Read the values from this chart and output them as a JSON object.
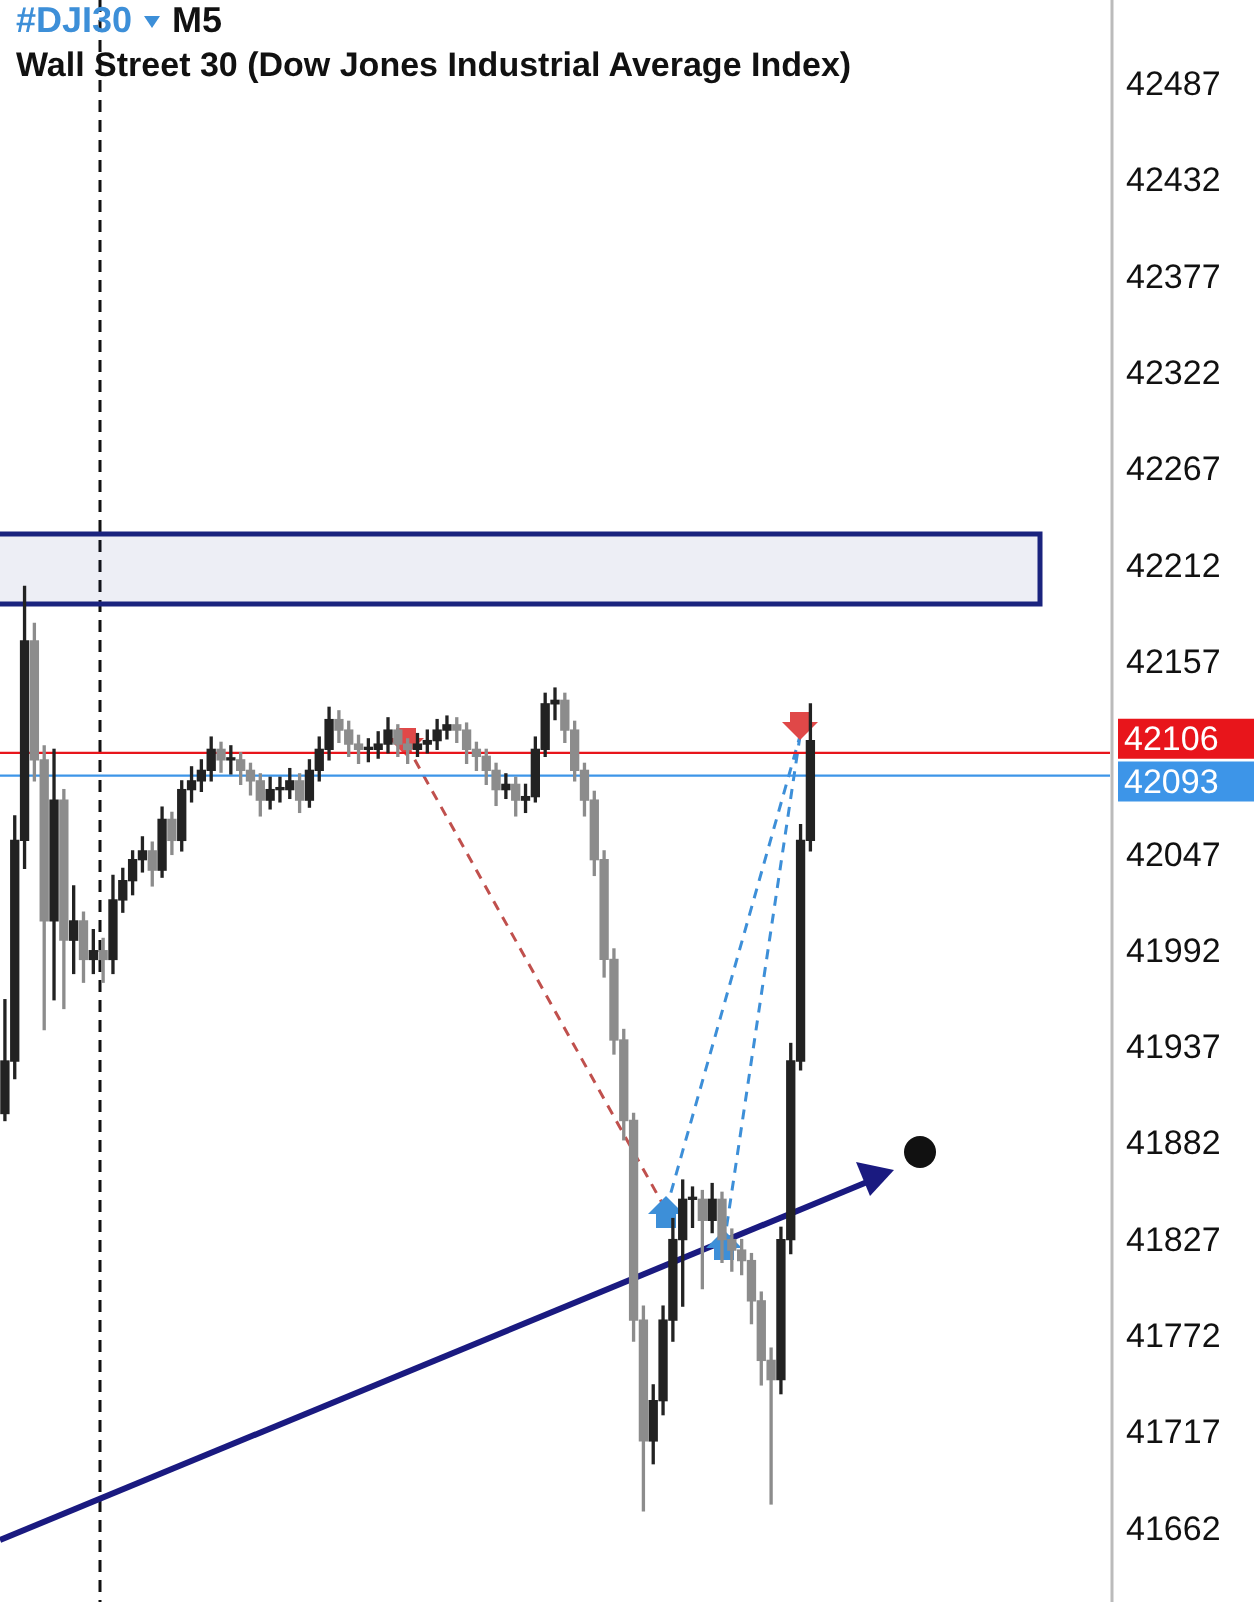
{
  "chart_data": {
    "type": "candlestick",
    "title": "#DJI30",
    "subtitle": "Wall Street 30 (Dow Jones Industrial Average Index)",
    "annotations": [
      "M5"
    ],
    "categories": [
      null,
      null,
      null,
      null,
      null,
      null,
      null,
      null,
      null,
      null,
      null,
      null,
      null,
      null,
      null,
      null,
      null,
      null,
      null,
      null,
      null,
      null,
      null,
      null,
      null,
      null,
      null,
      null,
      null,
      null,
      null,
      null,
      null,
      null,
      null,
      null,
      null,
      null,
      null,
      null,
      null,
      null,
      null,
      null,
      null,
      null,
      null,
      null,
      null,
      null,
      null,
      null,
      null,
      null,
      null,
      null,
      null,
      null,
      null,
      null,
      null,
      null,
      null,
      null,
      null,
      null,
      null,
      null,
      null,
      null,
      null,
      null,
      null,
      null,
      null,
      null,
      null,
      null,
      null,
      null,
      null,
      null,
      null,
      null,
      null,
      null,
      null,
      null,
      null,
      null,
      null,
      null,
      null,
      null,
      null,
      null,
      null,
      null,
      null,
      null,
      null,
      null,
      null,
      null,
      null,
      null,
      null,
      null,
      null,
      null,
      null,
      null,
      null
    ],
    "ohlc": [
      [
        41900,
        41965,
        41896,
        41930
      ],
      [
        41930,
        42070,
        41920,
        42056
      ],
      [
        42056,
        42201,
        42040,
        42170
      ],
      [
        42170,
        42180,
        42090,
        42102
      ],
      [
        42102,
        42110,
        41948,
        42010
      ],
      [
        42010,
        42108,
        41965,
        42079
      ],
      [
        42079,
        42085,
        41960,
        41999
      ],
      [
        41999,
        42030,
        41980,
        42010
      ],
      [
        42010,
        42015,
        41975,
        41988
      ],
      [
        41988,
        42005,
        41980,
        41993
      ],
      [
        41993,
        42000,
        41975,
        41988
      ],
      [
        41988,
        42036,
        41980,
        42022
      ],
      [
        42022,
        42040,
        42015,
        42033
      ],
      [
        42033,
        42050,
        42025,
        42045
      ],
      [
        42045,
        42058,
        42038,
        42050
      ],
      [
        42050,
        42055,
        42030,
        42039
      ],
      [
        42039,
        42075,
        42035,
        42068
      ],
      [
        42068,
        42072,
        42048,
        42056
      ],
      [
        42056,
        42090,
        42050,
        42085
      ],
      [
        42085,
        42098,
        42078,
        42090
      ],
      [
        42090,
        42102,
        42084,
        42096
      ],
      [
        42096,
        42115,
        42090,
        42108
      ],
      [
        42108,
        42112,
        42095,
        42102
      ],
      [
        42102,
        42110,
        42094,
        42102
      ],
      [
        42102,
        42106,
        42088,
        42096
      ],
      [
        42096,
        42100,
        42082,
        42090
      ],
      [
        42090,
        42094,
        42070,
        42079
      ],
      [
        42079,
        42092,
        42074,
        42085
      ],
      [
        42085,
        42092,
        42078,
        42085
      ],
      [
        42085,
        42097,
        42080,
        42090
      ],
      [
        42090,
        42094,
        42072,
        42079
      ],
      [
        42079,
        42102,
        42075,
        42096
      ],
      [
        42096,
        42115,
        42090,
        42108
      ],
      [
        42108,
        42132,
        42102,
        42125
      ],
      [
        42125,
        42130,
        42112,
        42119
      ],
      [
        42119,
        42124,
        42104,
        42111
      ],
      [
        42111,
        42116,
        42100,
        42108
      ],
      [
        42108,
        42114,
        42101,
        42108
      ],
      [
        42108,
        42118,
        42103,
        42111
      ],
      [
        42111,
        42126,
        42106,
        42119
      ],
      [
        42119,
        42122,
        42104,
        42111
      ],
      [
        42111,
        42114,
        42100,
        42108
      ],
      [
        42108,
        42117,
        42104,
        42111
      ],
      [
        42111,
        42119,
        42106,
        42113
      ],
      [
        42113,
        42125,
        42108,
        42119
      ],
      [
        42119,
        42127,
        42114,
        42122
      ],
      [
        42122,
        42126,
        42112,
        42119
      ],
      [
        42119,
        42123,
        42100,
        42108
      ],
      [
        42108,
        42112,
        42096,
        42104
      ],
      [
        42104,
        42108,
        42088,
        42096
      ],
      [
        42096,
        42100,
        42076,
        42085
      ],
      [
        42085,
        42094,
        42080,
        42088
      ],
      [
        42088,
        42092,
        42070,
        42079
      ],
      [
        42079,
        42088,
        42072,
        42081
      ],
      [
        42081,
        42115,
        42078,
        42108
      ],
      [
        42108,
        42140,
        42104,
        42134
      ],
      [
        42134,
        42143,
        42125,
        42136
      ],
      [
        42136,
        42140,
        42112,
        42119
      ],
      [
        42119,
        42124,
        42090,
        42096
      ],
      [
        42096,
        42100,
        42070,
        42079
      ],
      [
        42079,
        42084,
        42036,
        42045
      ],
      [
        42045,
        42050,
        41978,
        41988
      ],
      [
        41988,
        41994,
        41934,
        41942
      ],
      [
        41942,
        41948,
        41885,
        41896
      ],
      [
        41896,
        41900,
        41770,
        41782
      ],
      [
        41782,
        41790,
        41673,
        41713
      ],
      [
        41713,
        41745,
        41700,
        41736
      ],
      [
        41736,
        41790,
        41728,
        41782
      ],
      [
        41782,
        41840,
        41770,
        41828
      ],
      [
        41828,
        41862,
        41790,
        41851
      ],
      [
        41851,
        41858,
        41835,
        41851
      ],
      [
        41851,
        41856,
        41800,
        41839
      ],
      [
        41839,
        41860,
        41832,
        41851
      ],
      [
        41851,
        41855,
        41815,
        41828
      ],
      [
        41828,
        41834,
        41810,
        41822
      ],
      [
        41822,
        41828,
        41808,
        41816
      ],
      [
        41816,
        41820,
        41780,
        41793
      ],
      [
        41793,
        41798,
        41745,
        41759
      ],
      [
        41759,
        41766,
        41677,
        41748
      ],
      [
        41748,
        41835,
        41740,
        41828
      ],
      [
        41828,
        41940,
        41820,
        41930
      ],
      [
        41930,
        42065,
        41925,
        42056
      ],
      [
        42056,
        42134,
        42050,
        42113
      ],
      null,
      null,
      null,
      null,
      null,
      null,
      null,
      null,
      null,
      null,
      null,
      null,
      null,
      null,
      null,
      null,
      null,
      null,
      null,
      null,
      null,
      null,
      null,
      null,
      null,
      null,
      null,
      null,
      null,
      null
    ],
    "colors": [
      "#222222",
      "#222222",
      "#222222",
      "#8c8c8c",
      "#8c8c8c",
      "#222222",
      "#8c8c8c",
      "#222222",
      "#8c8c8c",
      "#222222",
      "#8c8c8c",
      "#222222",
      "#222222",
      "#222222",
      "#222222",
      "#8c8c8c",
      "#222222",
      "#8c8c8c",
      "#222222",
      "#222222",
      "#222222",
      "#222222",
      "#8c8c8c",
      "#222222",
      "#8c8c8c",
      "#8c8c8c",
      "#8c8c8c",
      "#222222",
      "#222222",
      "#222222",
      "#8c8c8c",
      "#222222",
      "#222222",
      "#222222",
      "#8c8c8c",
      "#8c8c8c",
      "#8c8c8c",
      "#222222",
      "#222222",
      "#222222",
      "#8c8c8c",
      "#8c8c8c",
      "#222222",
      "#222222",
      "#222222",
      "#222222",
      "#8c8c8c",
      "#8c8c8c",
      "#8c8c8c",
      "#8c8c8c",
      "#8c8c8c",
      "#222222",
      "#8c8c8c",
      "#222222",
      "#222222",
      "#222222",
      "#222222",
      "#8c8c8c",
      "#8c8c8c",
      "#8c8c8c",
      "#8c8c8c",
      "#8c8c8c",
      "#8c8c8c",
      "#8c8c8c",
      "#8c8c8c",
      "#8c8c8c",
      "#222222",
      "#222222",
      "#222222",
      "#222222",
      "#222222",
      "#8c8c8c",
      "#222222",
      "#8c8c8c",
      "#8c8c8c",
      "#8c8c8c",
      "#8c8c8c",
      "#8c8c8c",
      "#8c8c8c",
      "#222222",
      "#222222",
      "#222222",
      "#222222",
      null,
      null,
      null,
      null,
      null,
      null,
      null,
      null,
      null,
      null,
      null,
      null,
      null,
      null,
      null,
      null,
      null,
      null,
      null,
      null,
      null,
      null,
      null,
      null,
      null,
      null,
      null,
      null,
      null,
      null
    ],
    "ylim": [
      41621,
      42536
    ],
    "yticks": [
      41662,
      41717,
      41772,
      41827,
      41882,
      41937,
      41992,
      42047,
      42157,
      42212,
      42267,
      42322,
      42377,
      42432,
      42487
    ],
    "tick_labels": "y",
    "ref_lines": [
      {
        "axis": "y",
        "value": 42106,
        "label": "42106",
        "color": "#e8151b"
      },
      {
        "axis": "y",
        "value": 42093,
        "label": "42093",
        "color": "#3d95e8"
      }
    ],
    "bands": [
      {
        "axis": "y",
        "from": 42191,
        "to": 42231,
        "color": "#1a237e"
      }
    ]
  }
}
